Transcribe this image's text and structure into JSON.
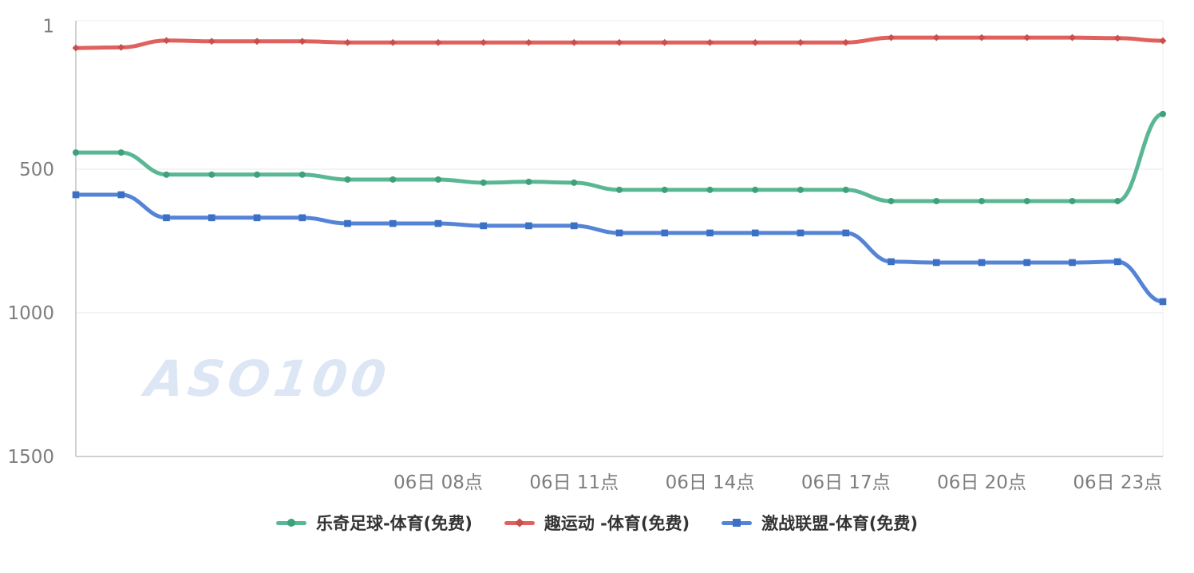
{
  "watermark": "ASO100",
  "ui_colors": {
    "background": "#ffffff",
    "axis_line": "#c2c2c2",
    "grid_line": "#e9e9e9",
    "plot_border": "#ececec",
    "tick_label": "#7d7d7d",
    "legend_text": "#333333",
    "watermark_text": "#dde6f5"
  },
  "chart_data": {
    "type": "line",
    "title": "",
    "xlabel": "",
    "ylabel": "",
    "grid": true,
    "smooth": true,
    "legend_position": "bottom",
    "y_axis": {
      "inverted": true,
      "range": [
        1,
        1500
      ],
      "ticks": [
        "1",
        "500",
        "1000",
        "1500"
      ],
      "tick_values": [
        1,
        500,
        1000,
        1500
      ]
    },
    "x_axis": {
      "points_count": 25,
      "unit": "hour",
      "visible_ticks": [
        {
          "index": 8,
          "label": "06日 08点"
        },
        {
          "index": 11,
          "label": "06日 11点"
        },
        {
          "index": 14,
          "label": "06日 14点"
        },
        {
          "index": 17,
          "label": "06日 17点"
        },
        {
          "index": 20,
          "label": "06日 20点"
        },
        {
          "index": 23,
          "label": "06日 23点"
        }
      ]
    },
    "series": [
      {
        "name": "乐奇足球-体育(免费)",
        "color": "#5ab794",
        "marker": "circle",
        "marker_color": "#3da27b",
        "values": [
          442,
          442,
          519,
          519,
          519,
          519,
          536,
          536,
          536,
          547,
          544,
          547,
          572,
          572,
          572,
          572,
          572,
          572,
          611,
          611,
          611,
          611,
          611,
          611,
          308
        ]
      },
      {
        "name": "趣运动 -体育(免费)",
        "color": "#e0615d",
        "marker": "diamond",
        "marker_color": "#c8504c",
        "values": [
          78,
          76,
          52,
          55,
          55,
          55,
          59,
          59,
          59,
          59,
          59,
          59,
          59,
          59,
          59,
          59,
          59,
          59,
          42,
          42,
          42,
          42,
          42,
          44,
          53
        ]
      },
      {
        "name": "激战联盟-体育(免费)",
        "color": "#5584d6",
        "marker": "square",
        "marker_color": "#3b70c4",
        "values": [
          589,
          589,
          669,
          669,
          669,
          669,
          689,
          689,
          689,
          697,
          697,
          697,
          722,
          722,
          722,
          722,
          722,
          722,
          822,
          825,
          825,
          825,
          825,
          822,
          961
        ]
      }
    ]
  }
}
